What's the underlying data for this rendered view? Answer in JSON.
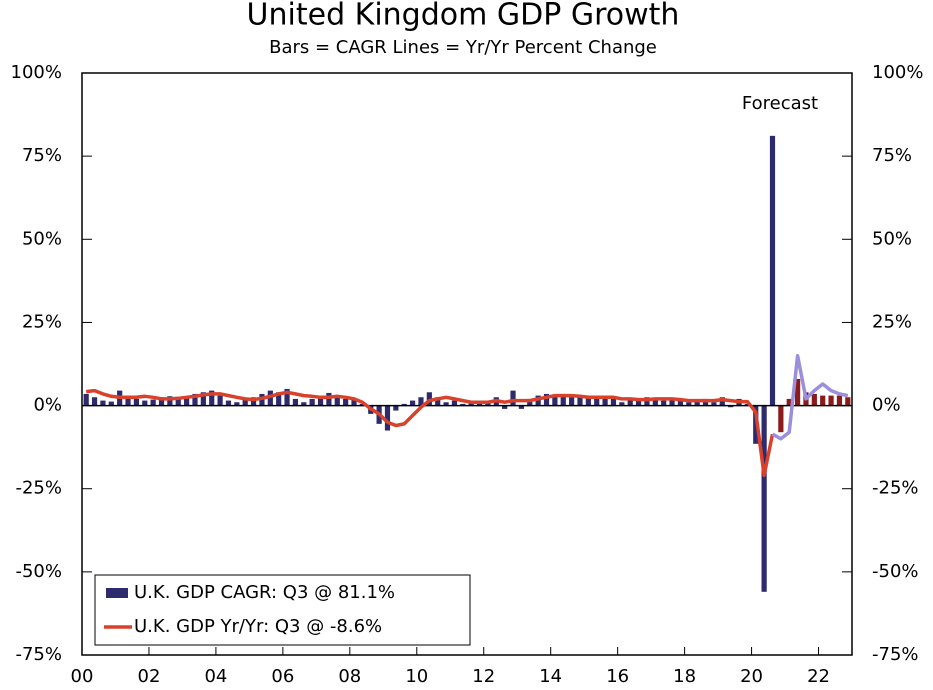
{
  "chart_data": {
    "type": "bar_line",
    "title": "United Kingdom GDP Growth",
    "subtitle": "Bars = CAGR     Lines = Yr/Yr Percent Change",
    "annotations": [
      "Forecast"
    ],
    "x": [
      2000.125,
      2000.375,
      2000.625,
      2000.875,
      2001.125,
      2001.375,
      2001.625,
      2001.875,
      2002.125,
      2002.375,
      2002.625,
      2002.875,
      2003.125,
      2003.375,
      2003.625,
      2003.875,
      2004.125,
      2004.375,
      2004.625,
      2004.875,
      2005.125,
      2005.375,
      2005.625,
      2005.875,
      2006.125,
      2006.375,
      2006.625,
      2006.875,
      2007.125,
      2007.375,
      2007.625,
      2007.875,
      2008.125,
      2008.375,
      2008.625,
      2008.875,
      2009.125,
      2009.375,
      2009.625,
      2009.875,
      2010.125,
      2010.375,
      2010.625,
      2010.875,
      2011.125,
      2011.375,
      2011.625,
      2011.875,
      2012.125,
      2012.375,
      2012.625,
      2012.875,
      2013.125,
      2013.375,
      2013.625,
      2013.875,
      2014.125,
      2014.375,
      2014.625,
      2014.875,
      2015.125,
      2015.375,
      2015.625,
      2015.875,
      2016.125,
      2016.375,
      2016.625,
      2016.875,
      2017.125,
      2017.375,
      2017.625,
      2017.875,
      2018.125,
      2018.375,
      2018.625,
      2018.875,
      2019.125,
      2019.375,
      2019.625,
      2019.875,
      2020.125,
      2020.375,
      2020.625,
      2020.875,
      2021.125,
      2021.375,
      2021.625,
      2021.875,
      2022.125,
      2022.375,
      2022.625,
      2022.875
    ],
    "series": [
      {
        "name": "U.K. GDP CAGR: Q3 @ 81.1%",
        "kind": "bar",
        "color": "#2e2a6e",
        "values": [
          3.5,
          2.5,
          1.5,
          1.2,
          4.5,
          2.5,
          2.0,
          1.5,
          1.8,
          2.5,
          2.8,
          2.5,
          2.5,
          3.5,
          4.0,
          4.5,
          3.0,
          1.5,
          1.0,
          2.0,
          2.5,
          3.5,
          4.5,
          4.0,
          5.0,
          2.0,
          1.0,
          2.0,
          2.5,
          3.8,
          2.5,
          2.0,
          2.0,
          0.5,
          -2.5,
          -5.5,
          -7.5,
          -1.5,
          0.5,
          1.5,
          2.5,
          4.0,
          2.5,
          1.0,
          1.5,
          0.5,
          1.5,
          1.0,
          1.0,
          2.5,
          -1.0,
          4.5,
          -1.0,
          2.0,
          3.0,
          3.5,
          3.0,
          3.5,
          2.5,
          2.5,
          2.5,
          2.5,
          2.0,
          2.5,
          1.0,
          2.0,
          1.5,
          2.5,
          2.0,
          1.5,
          2.0,
          1.5,
          1.0,
          1.5,
          2.0,
          1.0,
          2.5,
          -0.5,
          2.0,
          0.5,
          -11.5,
          -56.0,
          81.1,
          null,
          null,
          null,
          null,
          null,
          null,
          null,
          null,
          null
        ]
      },
      {
        "kind": "bar",
        "color": "#8b1a1a",
        "values": [
          null,
          null,
          null,
          null,
          null,
          null,
          null,
          null,
          null,
          null,
          null,
          null,
          null,
          null,
          null,
          null,
          null,
          null,
          null,
          null,
          null,
          null,
          null,
          null,
          null,
          null,
          null,
          null,
          null,
          null,
          null,
          null,
          null,
          null,
          null,
          null,
          null,
          null,
          null,
          null,
          null,
          null,
          null,
          null,
          null,
          null,
          null,
          null,
          null,
          null,
          null,
          null,
          null,
          null,
          null,
          null,
          null,
          null,
          null,
          null,
          null,
          null,
          null,
          null,
          null,
          null,
          null,
          null,
          null,
          null,
          null,
          null,
          null,
          null,
          null,
          null,
          null,
          null,
          null,
          null,
          null,
          null,
          null,
          -8.0,
          2.0,
          8.0,
          4.0,
          3.5,
          3.0,
          3.0,
          3.0,
          2.5
        ]
      },
      {
        "name": "U.K. GDP Yr/Yr: Q3 @ -8.6%",
        "kind": "line",
        "color": "#d9412b",
        "values": [
          4.2,
          4.5,
          3.5,
          2.8,
          2.5,
          2.5,
          2.5,
          2.8,
          2.5,
          2.0,
          2.0,
          2.2,
          2.5,
          2.8,
          3.2,
          3.5,
          3.5,
          3.0,
          2.5,
          2.0,
          1.8,
          2.2,
          2.8,
          3.5,
          4.0,
          3.5,
          3.0,
          2.8,
          2.5,
          2.5,
          2.8,
          2.5,
          2.0,
          1.0,
          -1.0,
          -2.5,
          -5.0,
          -6.0,
          -5.5,
          -3.0,
          -0.5,
          1.5,
          2.0,
          2.5,
          2.0,
          1.5,
          1.0,
          1.0,
          1.0,
          1.5,
          1.0,
          1.5,
          1.5,
          1.5,
          2.0,
          2.5,
          3.0,
          3.0,
          3.0,
          2.8,
          2.5,
          2.5,
          2.5,
          2.5,
          2.0,
          2.0,
          1.8,
          1.8,
          2.0,
          2.0,
          2.0,
          1.8,
          1.5,
          1.5,
          1.5,
          1.5,
          1.8,
          1.5,
          1.2,
          1.2,
          -2.0,
          -21.0,
          -8.6,
          null,
          null,
          null,
          null,
          null,
          null,
          null,
          null,
          null
        ]
      },
      {
        "kind": "line",
        "color": "#9b8fdb",
        "values": [
          null,
          null,
          null,
          null,
          null,
          null,
          null,
          null,
          null,
          null,
          null,
          null,
          null,
          null,
          null,
          null,
          null,
          null,
          null,
          null,
          null,
          null,
          null,
          null,
          null,
          null,
          null,
          null,
          null,
          null,
          null,
          null,
          null,
          null,
          null,
          null,
          null,
          null,
          null,
          null,
          null,
          null,
          null,
          null,
          null,
          null,
          null,
          null,
          null,
          null,
          null,
          null,
          null,
          null,
          null,
          null,
          null,
          null,
          null,
          null,
          null,
          null,
          null,
          null,
          null,
          null,
          null,
          null,
          null,
          null,
          null,
          null,
          null,
          null,
          null,
          null,
          null,
          null,
          null,
          null,
          null,
          null,
          -8.6,
          -10.0,
          -8.0,
          15.0,
          2.0,
          4.5,
          6.5,
          4.5,
          3.5,
          3.0
        ]
      }
    ],
    "xlim": [
      2000,
      2023
    ],
    "xticks": [
      {
        "value": 2000,
        "label": "00"
      },
      {
        "value": 2002,
        "label": "02"
      },
      {
        "value": 2004,
        "label": "04"
      },
      {
        "value": 2006,
        "label": "06"
      },
      {
        "value": 2008,
        "label": "08"
      },
      {
        "value": 2010,
        "label": "10"
      },
      {
        "value": 2012,
        "label": "12"
      },
      {
        "value": 2014,
        "label": "14"
      },
      {
        "value": 2016,
        "label": "16"
      },
      {
        "value": 2018,
        "label": "18"
      },
      {
        "value": 2020,
        "label": "20"
      },
      {
        "value": 2022,
        "label": "22"
      }
    ],
    "ylim": [
      -75,
      100
    ],
    "yticks": [
      {
        "value": -75,
        "label": "-75%"
      },
      {
        "value": -50,
        "label": "-50%"
      },
      {
        "value": -25,
        "label": "-25%"
      },
      {
        "value": 0,
        "label": "0%"
      },
      {
        "value": 25,
        "label": "25%"
      },
      {
        "value": 50,
        "label": "50%"
      },
      {
        "value": 75,
        "label": "75%"
      },
      {
        "value": 100,
        "label": "100%"
      }
    ],
    "y2lim": [
      -75,
      100
    ],
    "y2ticks": [
      {
        "value": -75,
        "label": "-75%"
      },
      {
        "value": -50,
        "label": "-50%"
      },
      {
        "value": -25,
        "label": "-25%"
      },
      {
        "value": 0,
        "label": "0%"
      },
      {
        "value": 25,
        "label": "25%"
      },
      {
        "value": 50,
        "label": "50%"
      },
      {
        "value": 75,
        "label": "75%"
      },
      {
        "value": 100,
        "label": "100%"
      }
    ],
    "legend": "lower left"
  }
}
